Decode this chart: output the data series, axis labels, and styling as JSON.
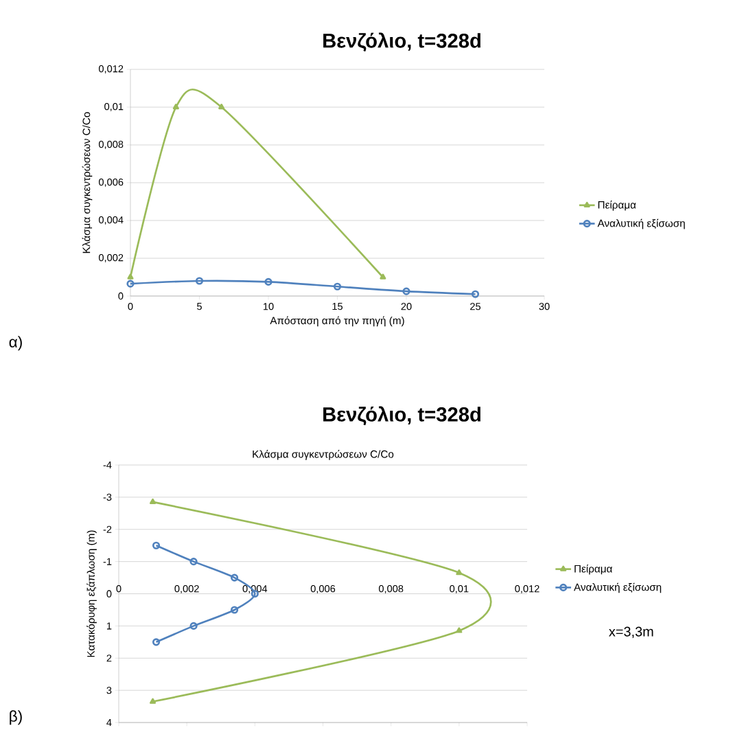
{
  "chart_data": [
    {
      "type": "line",
      "title": "Βενζόλιο, t=328d",
      "xlabel": "Απόσταση από την πηγή (m)",
      "ylabel": "Κλάσμα  συγκεντρώσεων  C/Co",
      "annotations": [
        "α)"
      ],
      "series": [
        {
          "name": "Πείραμα",
          "color": "#9bbb59",
          "marker": "triangle",
          "x": [
            0,
            3.3,
            6.6,
            18.3
          ],
          "values": [
            0.001,
            0.01,
            0.01,
            0.001
          ]
        },
        {
          "name": "Αναλυτική εξίσωση",
          "color": "#4f81bd",
          "marker": "circle",
          "x": [
            0,
            5,
            10,
            15,
            20,
            25
          ],
          "values": [
            0.00065,
            0.0008,
            0.00075,
            0.0005,
            0.00025,
            0.0001
          ]
        }
      ],
      "xlim": [
        0,
        30
      ],
      "xticks": [
        0,
        5,
        10,
        15,
        20,
        25,
        30
      ],
      "ylim": [
        0,
        0.012
      ],
      "yticks": [
        0,
        {
          "value": 0.002,
          "label": "0,002"
        },
        {
          "value": 0.004,
          "label": "0,004"
        },
        {
          "value": 0.006,
          "label": "0,006"
        },
        {
          "value": 0.008,
          "label": "0,008"
        },
        {
          "value": 0.01,
          "label": "0,01"
        },
        {
          "value": 0.012,
          "label": "0,012"
        }
      ],
      "grid": "y",
      "legend": "right",
      "line_style": "solid"
    },
    {
      "type": "line",
      "title": "Βενζόλιο, t=328d",
      "xlabel": "Κλάσμα συγκεντρώσεων C/Co",
      "ylabel": "Κατακόρυφη  εξάπλωση  (m)",
      "annotations": [
        "x=3,3m",
        "β)"
      ],
      "series": [
        {
          "name": "Πείραμα",
          "color": "#9bbb59",
          "marker": "triangle",
          "x": [
            0.001,
            0.01,
            0.01,
            0.001
          ],
          "values": [
            -2.85,
            -0.65,
            1.15,
            3.35
          ]
        },
        {
          "name": "Αναλυτική εξίσωση",
          "color": "#4f81bd",
          "marker": "circle",
          "x": [
            0.0011,
            0.0022,
            0.0034,
            0.004,
            0.0034,
            0.0022,
            0.0011
          ],
          "values": [
            -1.5,
            -1,
            -0.5,
            0,
            0.5,
            1,
            1.5
          ]
        }
      ],
      "xlim": [
        0,
        0.012
      ],
      "xticks": [
        0,
        {
          "value": 0.002,
          "label": "0,002"
        },
        {
          "value": 0.004,
          "label": "0,004"
        },
        {
          "value": 0.006,
          "label": "0,006"
        },
        {
          "value": 0.008,
          "label": "0,008"
        },
        {
          "value": 0.01,
          "label": "0,01"
        },
        {
          "value": 0.012,
          "label": "0,012"
        }
      ],
      "ylim": [
        4,
        -4
      ],
      "yticks": [
        -4,
        -3,
        -2,
        -1,
        0,
        1,
        2,
        3,
        4
      ],
      "grid": "y",
      "legend": "right",
      "line_style": "solid"
    }
  ]
}
